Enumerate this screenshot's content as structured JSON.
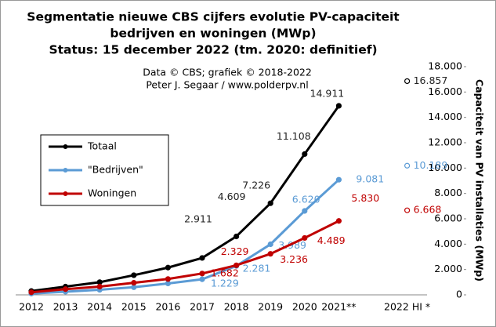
{
  "chart_data": {
    "type": "line",
    "title": [
      "Segmentatie nieuwe CBS cijfers evolutie PV-capaciteit",
      "bedrijven en woningen (MWp)",
      "Status: 15 december 2022 (tm. 2020: definitief)"
    ],
    "subtitle": [
      "Data © CBS; grafiek © 2018-2022",
      "Peter J. Segaar / www.polderpv.nl"
    ],
    "y_label": "Capaciteit van PV installaties (MWp)",
    "categories": [
      "2012",
      "2013",
      "2014",
      "2015",
      "2016",
      "2017",
      "2018",
      "2019",
      "2020",
      "2021**",
      null,
      "2022 HI *"
    ],
    "series": [
      {
        "name": "Totaal",
        "color": "#000000",
        "values": [
          300,
          650,
          1000,
          1550,
          2150,
          2911,
          4609,
          7226,
          11108,
          14911,
          null,
          16857
        ],
        "value_labels": [
          null,
          null,
          null,
          null,
          null,
          "2.911",
          "4.609",
          "7.226",
          "11.108",
          "14.911",
          null,
          "16.857"
        ]
      },
      {
        "name": "\"Bedrijven\"",
        "color": "#5b9bd5",
        "values": [
          100,
          250,
          400,
          600,
          900,
          1229,
          2281,
          3989,
          6620,
          9081,
          null,
          10189
        ],
        "value_labels": [
          null,
          null,
          null,
          null,
          null,
          "1.229",
          "2.281",
          "3.989",
          "6.620",
          "9.081",
          null,
          "10.189"
        ]
      },
      {
        "name": "Woningen",
        "color": "#c00000",
        "values": [
          200,
          450,
          650,
          950,
          1250,
          1682,
          2329,
          3236,
          4489,
          5830,
          null,
          6668
        ],
        "value_labels": [
          null,
          null,
          null,
          null,
          null,
          "1.682",
          "2.329",
          "3.236",
          "4.489",
          "5.830",
          null,
          "6.668"
        ]
      }
    ],
    "ylim": [
      0,
      18000
    ],
    "yticks": [
      0,
      {
        "value": 2000,
        "label": "2.000"
      },
      {
        "value": 4000,
        "label": "4.000"
      },
      {
        "value": 6000,
        "label": "6.000"
      },
      {
        "value": 8000,
        "label": "8.000"
      },
      {
        "value": 10000,
        "label": "10.000"
      },
      {
        "value": 12000,
        "label": "12.000"
      },
      {
        "value": 14000,
        "label": "14.000"
      },
      {
        "value": 16000,
        "label": "16.000"
      },
      {
        "value": 18000,
        "label": "18.000"
      }
    ],
    "grid": false,
    "legend": "left"
  }
}
